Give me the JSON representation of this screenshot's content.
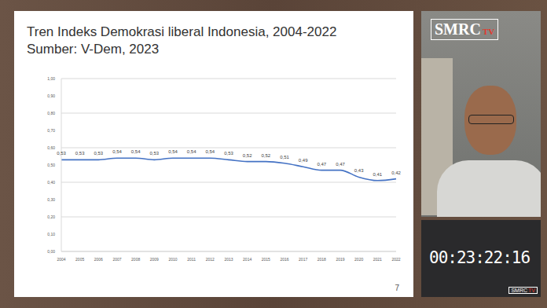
{
  "chart_data": {
    "type": "line",
    "title": "Tren Indeks Demokrasi liberal Indonesia, 2004-2022",
    "subtitle": "Sumber: V-Dem, 2023",
    "categories": [
      "2004",
      "2005",
      "2006",
      "2007",
      "2008",
      "2009",
      "2010",
      "2011",
      "2012",
      "2013",
      "2014",
      "2015",
      "2016",
      "2017",
      "2018",
      "2019",
      "2020",
      "2021",
      "2022"
    ],
    "values": [
      0.53,
      0.53,
      0.53,
      0.54,
      0.54,
      0.53,
      0.54,
      0.54,
      0.54,
      0.53,
      0.52,
      0.52,
      0.51,
      0.49,
      0.47,
      0.47,
      0.43,
      0.41,
      0.42
    ],
    "value_labels": [
      "0,53",
      "0,53",
      "0,53",
      "0,54",
      "0,54",
      "0,53",
      "0,54",
      "0,54",
      "0,54",
      "0,53",
      "0,52",
      "0,52",
      "0,51",
      "0,49",
      "0,47",
      "0,47",
      "0,43",
      "0,41",
      "0,42"
    ],
    "color": "#4472c4",
    "ylim": [
      0,
      1
    ],
    "yticks": [
      {
        "value": 0,
        "label": "0,00"
      },
      {
        "value": 0.1,
        "label": "0,10"
      },
      {
        "value": 0.2,
        "label": "0,20"
      },
      {
        "value": 0.3,
        "label": "0,30"
      },
      {
        "value": 0.4,
        "label": "0,40"
      },
      {
        "value": 0.5,
        "label": "0,50"
      },
      {
        "value": 0.6,
        "label": "0,60"
      },
      {
        "value": 0.7,
        "label": "0,70"
      },
      {
        "value": 0.8,
        "label": "0,80"
      },
      {
        "value": 0.9,
        "label": "0,90"
      },
      {
        "value": 1,
        "label": "1,00"
      }
    ],
    "grid": true,
    "data_labels": true
  },
  "slide": {
    "page_number": "7"
  },
  "video": {
    "logo": "SMRC",
    "logo_suffix": "TV",
    "timer": "00:23:22:16"
  }
}
